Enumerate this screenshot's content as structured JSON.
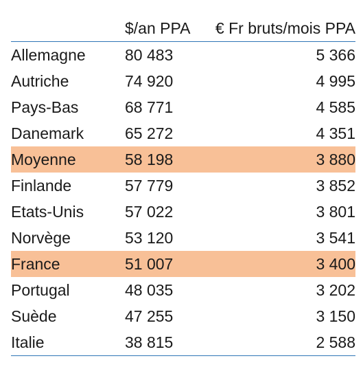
{
  "table": {
    "header": {
      "country": "",
      "usd": "$/an PPA",
      "eur": "€ Fr bruts/mois PPA"
    },
    "highlight_color": "#f8c097",
    "rule_color": "#2e75b6",
    "rows": [
      {
        "country": "Allemagne",
        "usd": "80 483",
        "eur": "5 366",
        "highlight": false
      },
      {
        "country": "Autriche",
        "usd": "74 920",
        "eur": "4 995",
        "highlight": false
      },
      {
        "country": "Pays-Bas",
        "usd": "68 771",
        "eur": "4 585",
        "highlight": false
      },
      {
        "country": "Danemark",
        "usd": "65 272",
        "eur": "4 351",
        "highlight": false
      },
      {
        "country": "Moyenne",
        "usd": "58 198",
        "eur": "3 880",
        "highlight": true
      },
      {
        "country": "Finlande",
        "usd": "57 779",
        "eur": "3 852",
        "highlight": false
      },
      {
        "country": "Etats-Unis",
        "usd": "57 022",
        "eur": "3 801",
        "highlight": false
      },
      {
        "country": "Norvège",
        "usd": "53 120",
        "eur": "3 541",
        "highlight": false
      },
      {
        "country": "France",
        "usd": "51 007",
        "eur": "3 400",
        "highlight": true
      },
      {
        "country": "Portugal",
        "usd": "48 035",
        "eur": "3 202",
        "highlight": false
      },
      {
        "country": "Suède",
        "usd": "47 255",
        "eur": "3 150",
        "highlight": false
      },
      {
        "country": "Italie",
        "usd": "38 815",
        "eur": "2 588",
        "highlight": false
      }
    ]
  }
}
